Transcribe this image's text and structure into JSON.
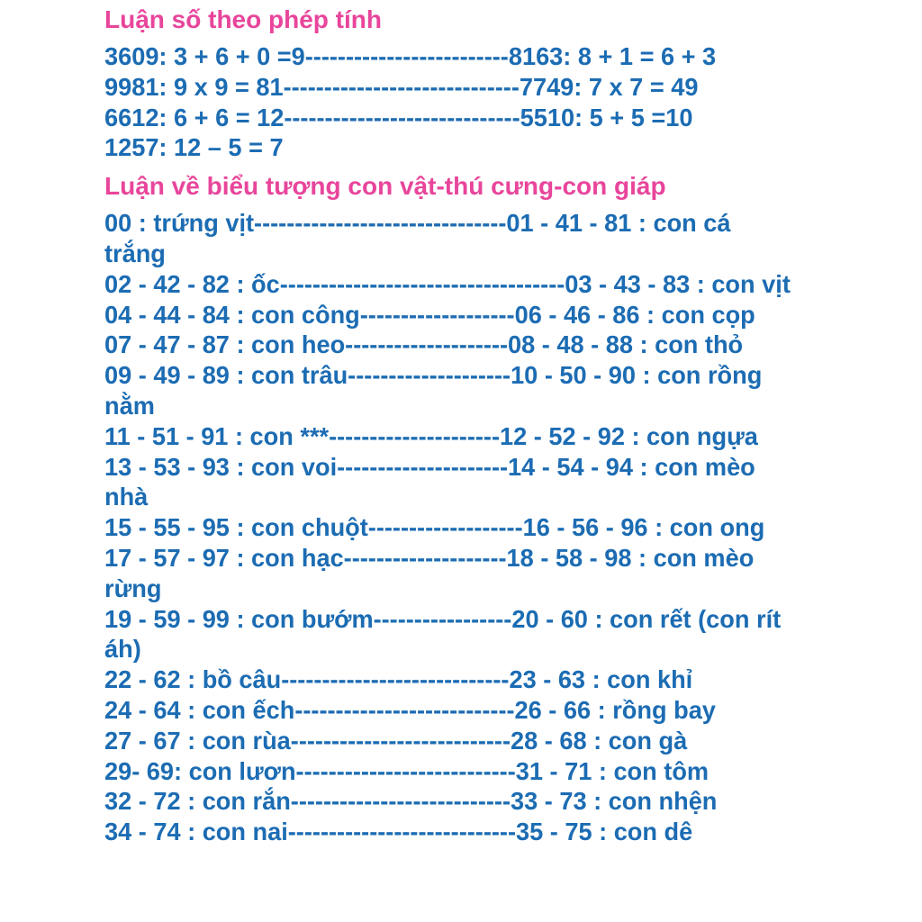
{
  "colors": {
    "heading": "#e8459b",
    "body": "#1c6cb3"
  },
  "section1": {
    "title": "Luận số theo phép tính",
    "lines": [
      "3609: 3 + 6 + 0 =9-------------------------8163: 8 + 1 = 6 + 3",
      "9981: 9 x 9 = 81-----------------------------7749: 7 x 7 = 49",
      "6612: 6 + 6 = 12-----------------------------5510: 5 + 5 =10",
      "1257: 12 – 5 = 7"
    ]
  },
  "section2": {
    "title": "Luận về biểu tượng con vật-thú cưng-con giáp",
    "lines": [
      "00 : trứng vịt-------------------------------01 - 41 - 81 : con cá",
      "trắng",
      "02 - 42 - 82 : ốc-----------------------------------03 - 43 - 83 : con vịt",
      "04 - 44 - 84 : con công-------------------06 - 46 - 86 : con cọp",
      "07 - 47 - 87 : con heo--------------------08 - 48 - 88 : con thỏ",
      "09 - 49 - 89 : con trâu--------------------10 - 50 - 90 : con rồng",
      "nằm",
      "11 - 51 - 91 : con ***---------------------12 - 52 - 92 : con ngựa",
      "13 - 53 - 93 : con voi---------------------14 - 54 - 94 : con mèo",
      "nhà",
      "15 - 55 - 95 : con chuột-------------------16 - 56 - 96 : con ong",
      "17 - 57 - 97 : con hạc--------------------18 - 58 - 98 : con mèo",
      "rừng",
      "19 - 59 - 99 : con bướm-----------------20 - 60 : con rết (con rít",
      "áh)",
      "22 - 62 : bồ câu----------------------------23 - 63 : con khỉ",
      "24 - 64 : con ếch---------------------------26 - 66 : rồng bay",
      "27 - 67 : con rùa---------------------------28 - 68 : con gà",
      "29- 69: con lươn---------------------------31 - 71 : con tôm",
      "32 - 72 : con rắn---------------------------33 - 73 : con nhện",
      "34 - 74 : con nai----------------------------35 - 75 : con dê"
    ]
  }
}
